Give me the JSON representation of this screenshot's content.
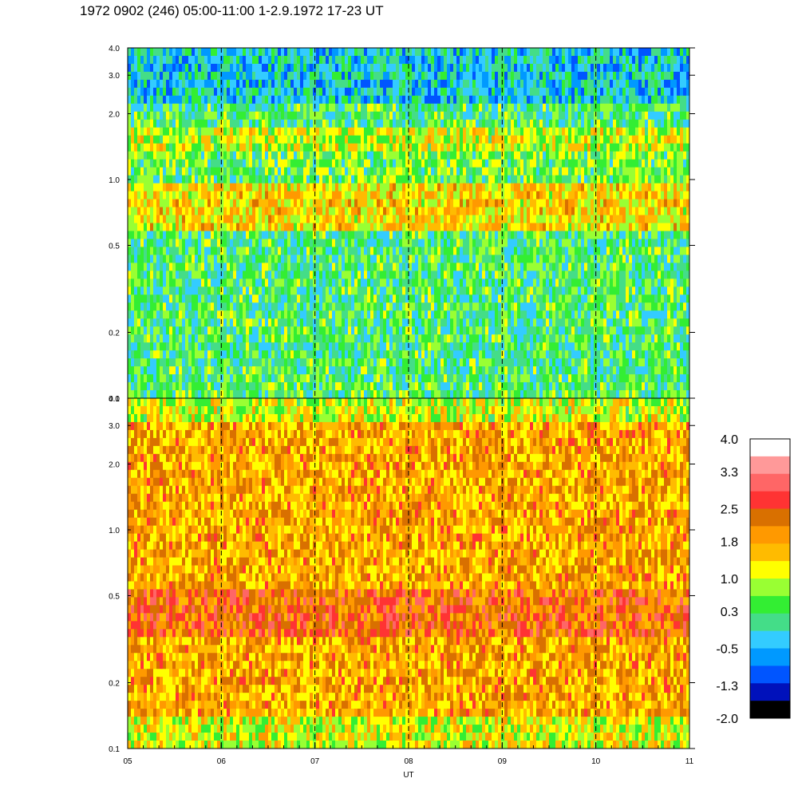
{
  "title": "1972 0902 (246) 05:00-11:00 1-2.9.1972  17-23 UT",
  "chart_data": {
    "type": "heatmap",
    "xlabel": "UT",
    "x_ticks": [
      "05",
      "06",
      "07",
      "08",
      "09",
      "10",
      "11"
    ],
    "xlim": [
      5,
      11
    ],
    "y_scale": "log",
    "dashed_vertical_lines_at": [
      6,
      7,
      8,
      9,
      10
    ],
    "panels": [
      {
        "name": "upper",
        "ylim": [
          0.1,
          4.0
        ],
        "y_ticks": [
          "0.1",
          "0.2",
          "0.5",
          "1.0",
          "2.0",
          "3.0",
          "4.0"
        ],
        "y_tick_values": [
          0.1,
          0.2,
          0.5,
          1.0,
          2.0,
          3.0,
          4.0
        ],
        "background_level": 0.3,
        "bands": [
          {
            "y_low": 1.4,
            "y_high": 1.75,
            "level": 1.0
          },
          {
            "y_low": 0.6,
            "y_high": 0.95,
            "level": 1.4
          },
          {
            "y_low": 0.95,
            "y_high": 1.4,
            "level": 0.5
          },
          {
            "y_low": 2.2,
            "y_high": 4.0,
            "level": -0.3
          }
        ]
      },
      {
        "name": "lower",
        "ylim": [
          0.1,
          4.0
        ],
        "y_ticks": [
          "0.1",
          "0.2",
          "0.5",
          "1.0",
          "2.0",
          "3.0",
          "4.0"
        ],
        "y_tick_values": [
          0.1,
          0.2,
          0.5,
          1.0,
          2.0,
          3.0,
          4.0
        ],
        "background_level": 1.8,
        "bands": [
          {
            "y_low": 0.33,
            "y_high": 0.55,
            "level": 2.3
          },
          {
            "y_low": 0.1,
            "y_high": 0.14,
            "level": 1.1
          },
          {
            "y_low": 3.0,
            "y_high": 4.0,
            "level": 1.0
          }
        ]
      }
    ],
    "colorbar": {
      "labels": [
        "4.0",
        "3.3",
        "2.5",
        "1.8",
        "1.0",
        "0.3",
        "-0.5",
        "-1.3",
        "-2.0"
      ],
      "label_values": [
        4.0,
        3.3,
        2.5,
        1.8,
        1.0,
        0.3,
        -0.5,
        -1.3,
        -2.0
      ],
      "colors_top_to_bottom": [
        "#ffffff",
        "#ff9999",
        "#ff6666",
        "#ff3333",
        "#d97000",
        "#ff9900",
        "#ffbb00",
        "#ffff00",
        "#99ff33",
        "#33ee33",
        "#44dd88",
        "#33ccff",
        "#0099ff",
        "#0055ff",
        "#0011bb",
        "#000000"
      ]
    }
  }
}
